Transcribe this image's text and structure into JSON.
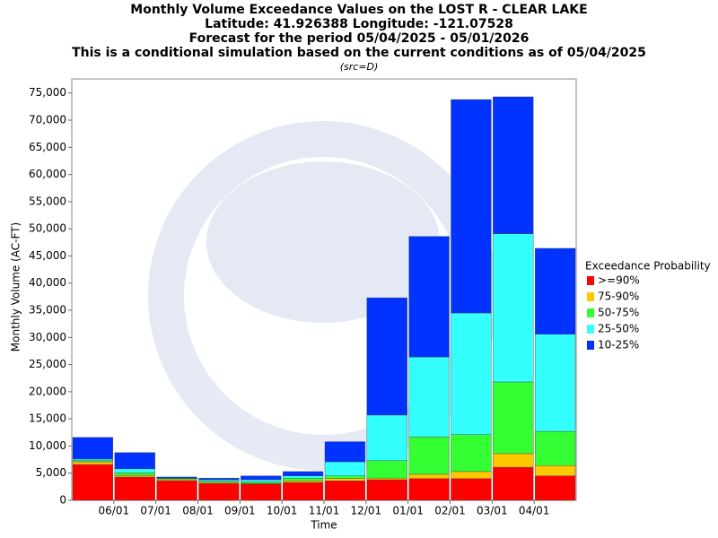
{
  "chart_data": {
    "type": "stacked_bar",
    "title": "Monthly Volume Exceedance Values on the LOST R - CLEAR LAKE",
    "subtitle_lines": [
      "Latitude: 41.926388 Longitude: -121.07528",
      "Forecast for the period 05/04/2025 - 05/01/2026",
      "This is a conditional simulation based on the current conditions as of 05/04/2025"
    ],
    "source_note": "(src=D)",
    "x_label": "Time",
    "y_label": "Monthly Volume (AC-FT)",
    "legend_title": "Exceedance Probability",
    "categories": [
      null,
      "06/01",
      "07/01",
      "08/01",
      "09/01",
      "10/01",
      "11/01",
      "12/01",
      "01/01",
      "02/01",
      "03/01",
      "04/01"
    ],
    "series": [
      {
        "name": ">=90%",
        "color": "#ff0000",
        "values": [
          6600,
          4300,
          3600,
          3100,
          3000,
          3300,
          3600,
          3800,
          4000,
          4000,
          6100,
          4500
        ]
      },
      {
        "name": "75-90%",
        "color": "#ffc800",
        "values": [
          500,
          300,
          200,
          200,
          100,
          300,
          400,
          300,
          800,
          1300,
          2500,
          1900
        ]
      },
      {
        "name": "50-75%",
        "color": "#33ff33",
        "values": [
          200,
          500,
          200,
          200,
          300,
          500,
          500,
          3200,
          6900,
          6800,
          13200,
          6300
        ]
      },
      {
        "name": "25-50%",
        "color": "#33ffff",
        "values": [
          300,
          700,
          100,
          300,
          400,
          400,
          2600,
          8400,
          14700,
          22400,
          27300,
          17900
        ]
      },
      {
        "name": "10-25%",
        "color": "#0033ff",
        "values": [
          4000,
          3000,
          200,
          300,
          700,
          800,
          3700,
          21600,
          22200,
          39300,
          25200,
          15800
        ]
      }
    ],
    "ylim": [
      0,
      77600
    ],
    "yticks": [
      0,
      {
        "value": 5000,
        "label": "5,000"
      },
      {
        "value": 10000,
        "label": "10,000"
      },
      {
        "value": 15000,
        "label": "15,000"
      },
      {
        "value": 20000,
        "label": "20,000"
      },
      {
        "value": 25000,
        "label": "25,000"
      },
      {
        "value": 30000,
        "label": "30,000"
      },
      {
        "value": 35000,
        "label": "35,000"
      },
      {
        "value": 40000,
        "label": "40,000"
      },
      {
        "value": 45000,
        "label": "45,000"
      },
      {
        "value": 50000,
        "label": "50,000"
      },
      {
        "value": 55000,
        "label": "55,000"
      },
      {
        "value": 60000,
        "label": "60,000"
      },
      {
        "value": 65000,
        "label": "65,000"
      },
      {
        "value": 70000,
        "label": "70,000"
      },
      {
        "value": 75000,
        "label": "75,000"
      }
    ],
    "legend_position": "right",
    "grid": false
  }
}
